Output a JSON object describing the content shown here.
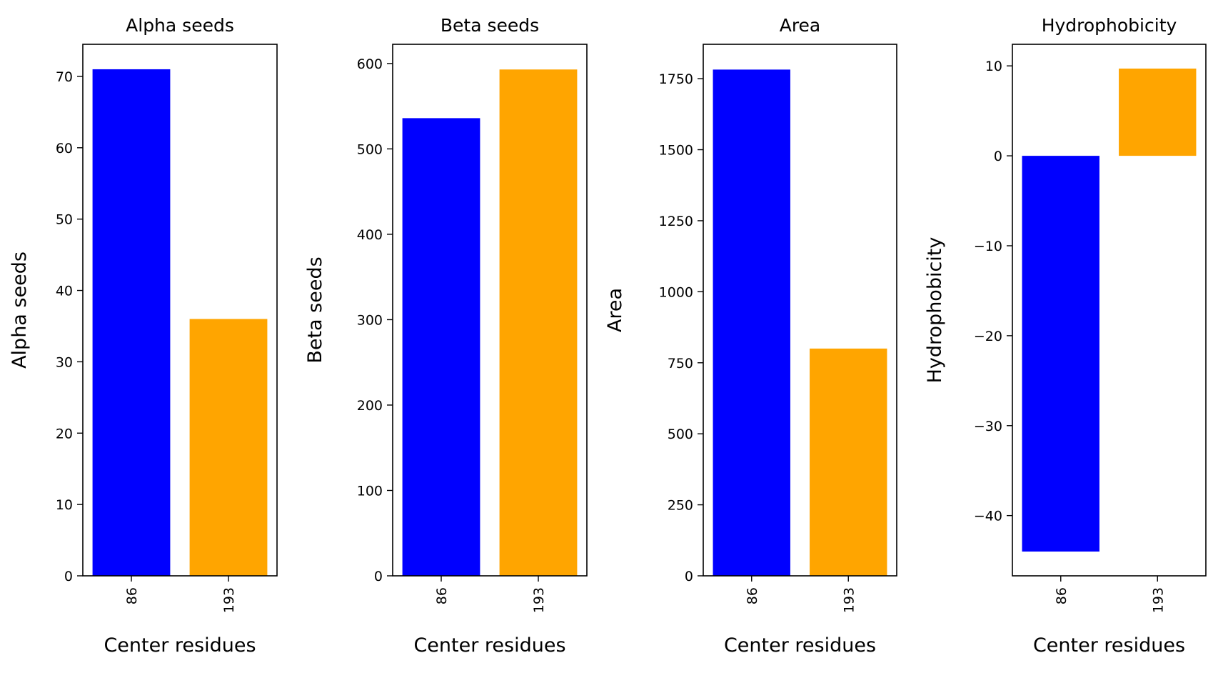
{
  "colors": {
    "series_86": "#0000ff",
    "series_193": "#ffa500",
    "axes": "#000000",
    "background": "#ffffff"
  },
  "chart_data": [
    {
      "type": "bar",
      "title": "Alpha seeds",
      "xlabel": "Center residues",
      "ylabel": "Alpha seeds",
      "categories": [
        "86",
        "193"
      ],
      "values": [
        71,
        36
      ],
      "ylim": [
        0,
        74.5
      ],
      "yticks": [
        0,
        10,
        20,
        30,
        40,
        50,
        60,
        70
      ],
      "ytick_labels": [
        "0",
        "10",
        "20",
        "30",
        "40",
        "50",
        "60",
        "70"
      ],
      "bar_colors": [
        "#0000ff",
        "#ffa500"
      ],
      "grid": false,
      "legend": "none"
    },
    {
      "type": "bar",
      "title": "Beta seeds",
      "xlabel": "Center residues",
      "ylabel": "Beta seeds",
      "categories": [
        "86",
        "193"
      ],
      "values": [
        536,
        593
      ],
      "ylim": [
        0,
        622.5
      ],
      "yticks": [
        0,
        100,
        200,
        300,
        400,
        500,
        600
      ],
      "ytick_labels": [
        "0",
        "100",
        "200",
        "300",
        "400",
        "500",
        "600"
      ],
      "bar_colors": [
        "#0000ff",
        "#ffa500"
      ],
      "grid": false,
      "legend": "none"
    },
    {
      "type": "bar",
      "title": "Area",
      "xlabel": "Center residues",
      "ylabel": "Area",
      "categories": [
        "86",
        "193"
      ],
      "values": [
        1782,
        800
      ],
      "ylim": [
        0,
        1871
      ],
      "yticks": [
        0,
        250,
        500,
        750,
        1000,
        1250,
        1500,
        1750
      ],
      "ytick_labels": [
        "0",
        "250",
        "500",
        "750",
        "1000",
        "1250",
        "1500",
        "1750"
      ],
      "bar_colors": [
        "#0000ff",
        "#ffa500"
      ],
      "grid": false,
      "legend": "none"
    },
    {
      "type": "bar",
      "title": "Hydrophobicity",
      "xlabel": "Center residues",
      "ylabel": "Hydrophobicity",
      "categories": [
        "86",
        "193"
      ],
      "values": [
        -44,
        9.7
      ],
      "ylim": [
        -46.7,
        12.4
      ],
      "yticks": [
        10,
        0,
        -10,
        -20,
        -30,
        -40
      ],
      "ytick_labels": [
        "10",
        "0",
        "−10",
        "−20",
        "−30",
        "−40"
      ],
      "bar_colors": [
        "#0000ff",
        "#ffa500"
      ],
      "grid": false,
      "legend": "none"
    }
  ]
}
